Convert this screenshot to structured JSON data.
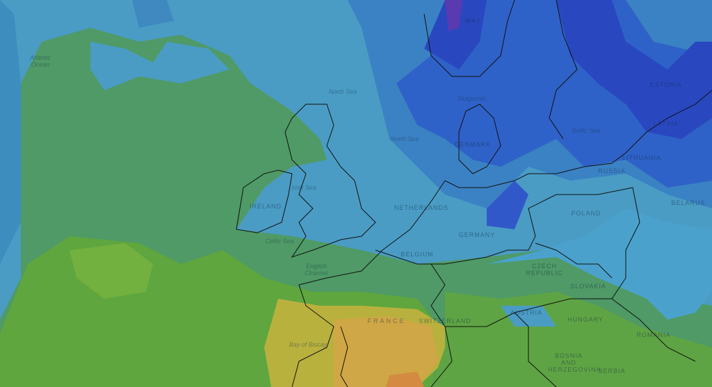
{
  "labels": [
    "Atlantic Ocean",
    "WAY",
    "North Sea",
    "North Sea",
    "Skagerrak",
    "DENMARK",
    "Baltic Sea",
    "LATVIA",
    "ESTONIA",
    "LITHUANIA",
    "RUSSIA",
    "BELARUS",
    "POLAND",
    "Irish Sea",
    "IRELAND",
    "NETHERLANDS",
    "GERMANY",
    "Celtic Sea",
    "BELGIUM",
    "English Channel",
    "CZECH REPUBLIC",
    "SLOVAKIA",
    "AUSTRIA",
    "SWITZERLAND",
    "HUNGARY",
    "FRANCE",
    "ROMANIA",
    "Bay of Biscay",
    "BOSNIA AND HERZEGOVINA",
    "SERBIA"
  ]
}
